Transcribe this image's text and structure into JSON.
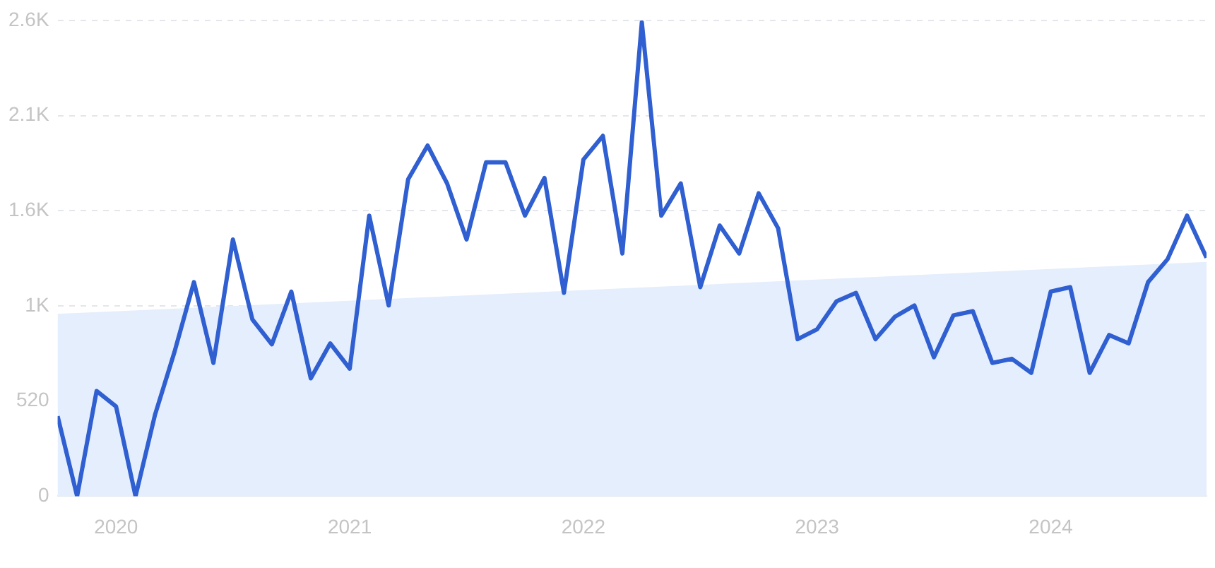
{
  "chart_data": {
    "type": "line",
    "x": [
      "2019-10",
      "2019-11",
      "2019-12",
      "2020-01",
      "2020-02",
      "2020-03",
      "2020-04",
      "2020-05",
      "2020-06",
      "2020-07",
      "2020-08",
      "2020-09",
      "2020-10",
      "2020-11",
      "2020-12",
      "2021-01",
      "2021-02",
      "2021-03",
      "2021-04",
      "2021-05",
      "2021-06",
      "2021-07",
      "2021-08",
      "2021-09",
      "2021-10",
      "2021-11",
      "2021-12",
      "2022-01",
      "2022-02",
      "2022-03",
      "2022-04",
      "2022-05",
      "2022-06",
      "2022-07",
      "2022-08",
      "2022-09",
      "2022-10",
      "2022-11",
      "2022-12",
      "2023-01",
      "2023-02",
      "2023-03",
      "2023-04",
      "2023-05",
      "2023-06",
      "2023-07",
      "2023-08",
      "2023-09",
      "2023-10",
      "2023-11",
      "2023-12",
      "2024-01",
      "2024-02",
      "2024-03",
      "2024-04",
      "2024-05",
      "2024-06",
      "2024-07",
      "2024-08",
      "2024-09"
    ],
    "series": [
      {
        "type": "area",
        "color": "#e4eefc",
        "x": [
          "2019-10",
          "2024-09"
        ],
        "values": [
          996,
          1280
        ]
      },
      {
        "color": "#2f5fd0",
        "values": [
          437,
          0,
          575,
          490,
          0,
          445,
          788,
          1170,
          728,
          1403,
          966,
          830,
          1118,
          644,
          835,
          697,
          1533,
          1042,
          1732,
          1916,
          1709,
          1403,
          1824,
          1824,
          1533,
          1739,
          1111,
          1839,
          1969,
          1326,
          2590,
          1533,
          1709,
          1142,
          1479,
          1326,
          1655,
          1464,
          858,
          912,
          1065,
          1111,
          858,
          981,
          1042,
          759,
          988,
          1011,
          728,
          751,
          674,
          1118,
          1142,
          674,
          881,
          835,
          1170,
          1295,
          1533,
          1303
        ]
      }
    ],
    "xlim": [
      "2019-10",
      "2024-09"
    ],
    "xticks": [
      "2020",
      "2021",
      "2022",
      "2023",
      "2024"
    ],
    "ylim": [
      0,
      2600
    ],
    "yticks": [
      0,
      520,
      {
        "value": 1040,
        "label": "1K"
      },
      {
        "value": 1560,
        "label": "1.6K"
      },
      {
        "value": 2080,
        "label": "2.1K"
      },
      {
        "value": 2600,
        "label": "2.6K"
      }
    ],
    "grid": "y",
    "legend": false,
    "marker": "none",
    "line_style": "solid"
  }
}
